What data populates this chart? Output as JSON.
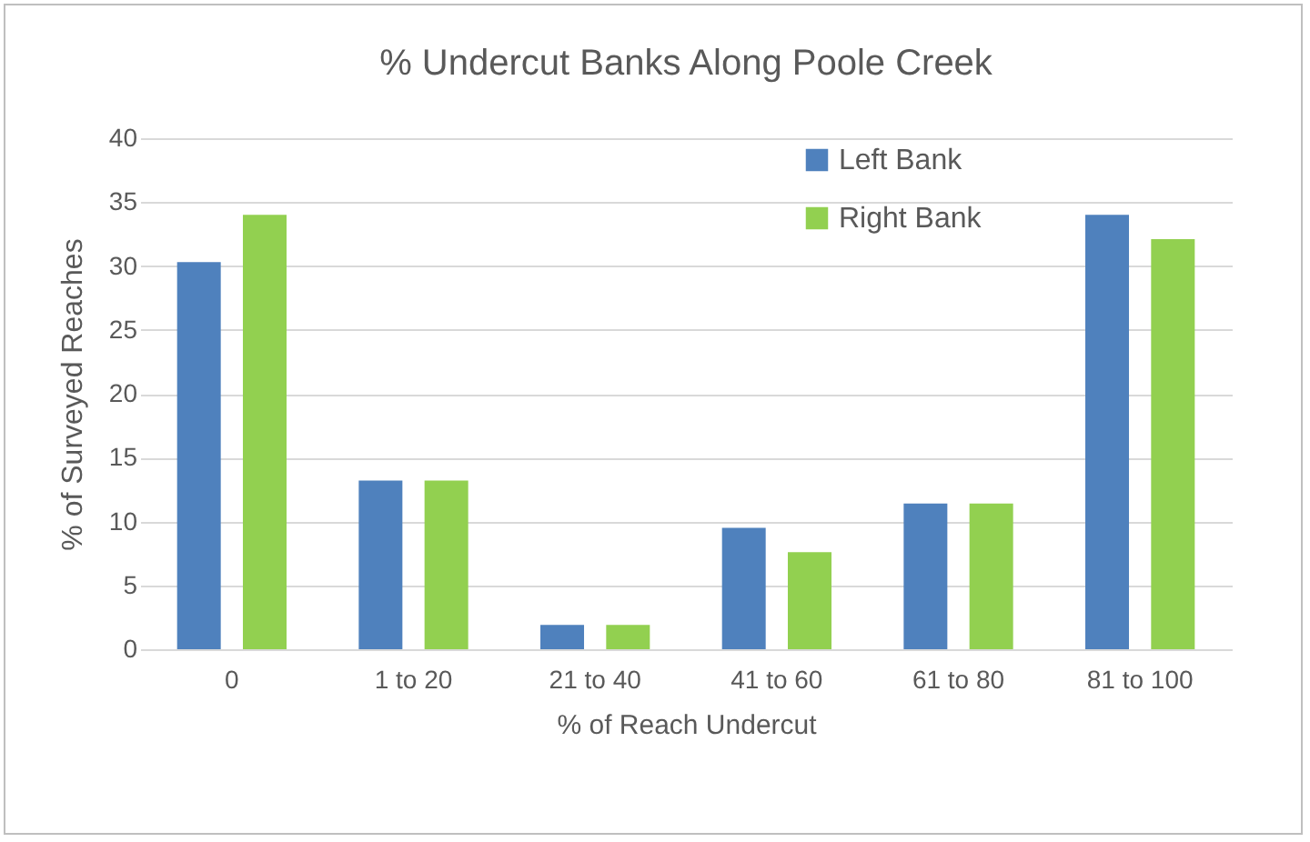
{
  "chart_data": {
    "type": "bar",
    "title": "% Undercut Banks Along Poole Creek",
    "xlabel": "% of Reach Undercut",
    "ylabel": "% of Surveyed Reaches",
    "categories": [
      "0",
      "1 to 20",
      "21 to 40",
      "41 to 60",
      "61 to 80",
      "81 to 100"
    ],
    "series": [
      {
        "name": "Left Bank",
        "color": "#4f81bd",
        "values": [
          30.3,
          13.2,
          1.9,
          9.5,
          11.4,
          34.0
        ]
      },
      {
        "name": "Right Bank",
        "color": "#92d050",
        "values": [
          34.0,
          13.2,
          1.9,
          7.6,
          11.4,
          32.1
        ]
      }
    ],
    "ylim": [
      0,
      40
    ],
    "yticks": [
      0,
      5,
      10,
      15,
      20,
      25,
      30,
      35,
      40
    ],
    "grid": "y",
    "legend": "top right"
  }
}
